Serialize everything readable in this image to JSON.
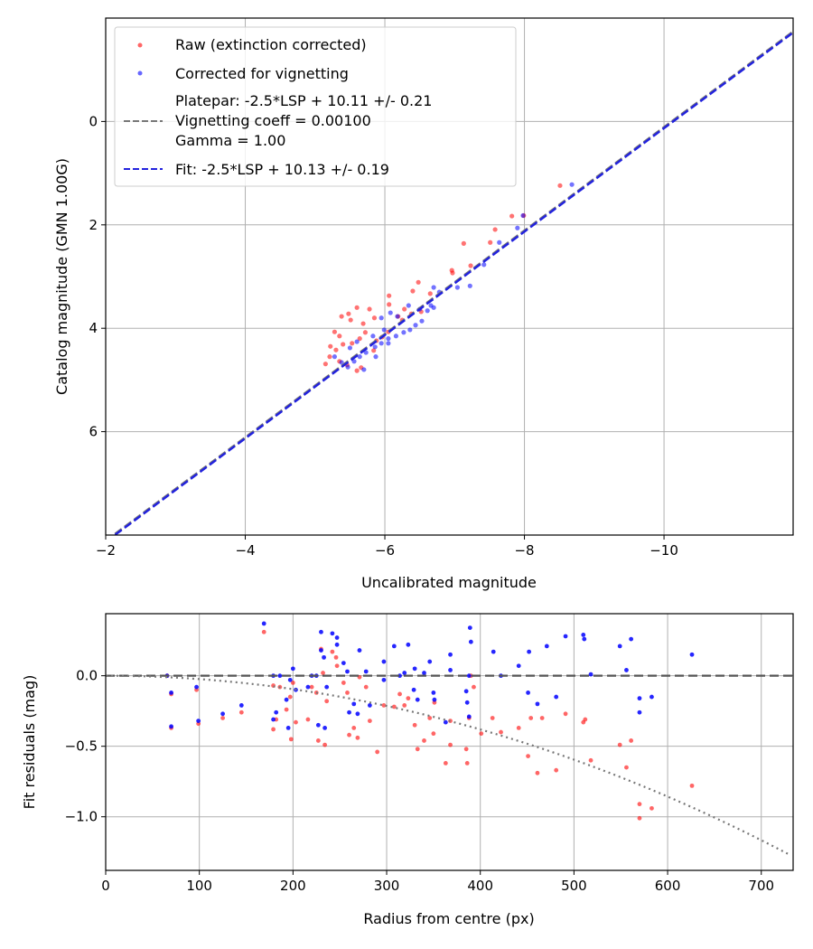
{
  "colors": {
    "raw": "#ff0000",
    "corrected": "#0000ff",
    "fit": "#2222dd",
    "platepar": "#777777",
    "grid": "#b0b0b0"
  },
  "chart_data": [
    {
      "type": "scatter",
      "title": "",
      "xlabel": "Uncalibrated magnitude",
      "ylabel": "Catalog magnitude (GMN 1.00G)",
      "xlim": [
        -2,
        -11.85
      ],
      "ylim": [
        8,
        -2
      ],
      "grid": true,
      "legend_placement": "top-left",
      "xticks": [
        -2,
        -4,
        -6,
        -8,
        -10
      ],
      "xtick_labels": [
        "−2",
        "−4",
        "−6",
        "−8",
        "−10"
      ],
      "yticks": [
        0,
        2,
        4,
        6
      ],
      "ytick_labels": [
        "0",
        "2",
        "4",
        "6"
      ],
      "legend": [
        "Raw (extinction corrected)",
        "Corrected for vignetting",
        "Platepar: -2.5*LSP + 10.11 +/- 0.21",
        "Vignetting coeff = 0.00100",
        "Gamma = 1.00",
        "Fit: -2.5*LSP + 10.13 +/- 0.19"
      ],
      "lines": [
        {
          "name": "platepar",
          "slope": 1,
          "intercept": 10.11
        },
        {
          "name": "fit",
          "slope": 1,
          "intercept": 10.13
        }
      ],
      "series": [
        {
          "name": "Raw (extinction corrected)",
          "points": [
            [
              -8.51,
              1.24
            ],
            [
              -7.99,
              1.82
            ],
            [
              -7.82,
              1.83
            ],
            [
              -7.58,
              2.09
            ],
            [
              -7.51,
              2.34
            ],
            [
              -7.13,
              2.36
            ],
            [
              -6.96,
              2.88
            ],
            [
              -7.23,
              2.79
            ],
            [
              -6.97,
              2.93
            ],
            [
              -6.48,
              3.11
            ],
            [
              -6.65,
              3.33
            ],
            [
              -6.4,
              3.28
            ],
            [
              -6.06,
              3.37
            ],
            [
              -5.78,
              3.63
            ],
            [
              -5.6,
              3.6
            ],
            [
              -5.48,
              3.72
            ],
            [
              -5.38,
              3.77
            ],
            [
              -5.51,
              3.84
            ],
            [
              -6.06,
              3.54
            ],
            [
              -6.19,
              3.77
            ],
            [
              -6.38,
              3.72
            ],
            [
              -6.52,
              3.68
            ],
            [
              -5.69,
              3.91
            ],
            [
              -5.72,
              4.08
            ],
            [
              -5.64,
              4.2
            ],
            [
              -5.53,
              4.29
            ],
            [
              -5.4,
              4.31
            ],
            [
              -5.3,
              4.42
            ],
            [
              -5.21,
              4.55
            ],
            [
              -5.15,
              4.69
            ],
            [
              -5.35,
              4.64
            ],
            [
              -5.46,
              4.71
            ],
            [
              -5.6,
              4.82
            ],
            [
              -5.66,
              4.76
            ],
            [
              -5.88,
              4.24
            ],
            [
              -5.96,
              4.17
            ],
            [
              -6.05,
              4.07
            ],
            [
              -5.84,
              4.43
            ],
            [
              -6.25,
              3.84
            ],
            [
              -5.85,
              3.8
            ],
            [
              -6.28,
              3.63
            ],
            [
              -5.28,
              4.07
            ],
            [
              -5.35,
              4.15
            ],
            [
              -5.22,
              4.35
            ]
          ]
        },
        {
          "name": "Corrected for vignetting",
          "points": [
            [
              -8.68,
              1.22
            ],
            [
              -7.98,
              1.82
            ],
            [
              -7.9,
              2.06
            ],
            [
              -7.64,
              2.34
            ],
            [
              -7.42,
              2.77
            ],
            [
              -7.22,
              3.18
            ],
            [
              -7.04,
              3.21
            ],
            [
              -6.78,
              3.3
            ],
            [
              -6.66,
              3.56
            ],
            [
              -6.61,
              3.66
            ],
            [
              -6.53,
              3.86
            ],
            [
              -6.44,
              3.94
            ],
            [
              -6.36,
              4.03
            ],
            [
              -6.27,
              4.08
            ],
            [
              -6.16,
              4.15
            ],
            [
              -6.05,
              4.2
            ],
            [
              -5.95,
              4.29
            ],
            [
              -5.86,
              4.36
            ],
            [
              -5.73,
              4.47
            ],
            [
              -5.64,
              4.55
            ],
            [
              -5.56,
              4.64
            ],
            [
              -5.47,
              4.75
            ],
            [
              -5.7,
              4.8
            ],
            [
              -5.38,
              4.66
            ],
            [
              -5.28,
              4.55
            ],
            [
              -5.95,
              3.8
            ],
            [
              -6.08,
              3.7
            ],
            [
              -6.18,
              3.77
            ],
            [
              -6.34,
              3.56
            ],
            [
              -6.5,
              3.63
            ],
            [
              -6.7,
              3.6
            ],
            [
              -5.83,
              4.15
            ],
            [
              -5.99,
              4.03
            ],
            [
              -5.6,
              4.26
            ],
            [
              -5.5,
              4.38
            ],
            [
              -5.87,
              4.55
            ],
            [
              -6.05,
              4.29
            ],
            [
              -6.7,
              3.21
            ]
          ]
        }
      ]
    },
    {
      "type": "scatter",
      "title": "",
      "xlabel": "Radius from centre (px)",
      "ylabel": "Fit residuals (mag)",
      "xlim": [
        0,
        734
      ],
      "ylim": [
        -1.38,
        0.44
      ],
      "grid": true,
      "xticks": [
        0,
        100,
        200,
        300,
        400,
        500,
        600,
        700
      ],
      "xtick_labels": [
        "0",
        "100",
        "200",
        "300",
        "400",
        "500",
        "600",
        "700"
      ],
      "yticks": [
        0,
        -0.5,
        -1
      ],
      "ytick_labels": [
        "0.0",
        "−0.5",
        "−1.0"
      ],
      "lines": [
        {
          "name": "zero",
          "value": 0
        },
        {
          "name": "vignetting curve",
          "quadratic_coeff": -2.38e-06
        }
      ],
      "series": [
        {
          "name": "Raw",
          "points": [
            [
              65.6,
              0
            ],
            [
              70,
              -0.13
            ],
            [
              70,
              -0.37
            ],
            [
              97,
              -0.1
            ],
            [
              99,
              -0.34
            ],
            [
              125,
              -0.3
            ],
            [
              145,
              -0.26
            ],
            [
              169,
              0.31
            ],
            [
              179,
              -0.38
            ],
            [
              182,
              -0.31
            ],
            [
              179,
              -0.07
            ],
            [
              186,
              -0.08
            ],
            [
              193,
              -0.24
            ],
            [
              197,
              -0.15
            ],
            [
              198,
              -0.45
            ],
            [
              203,
              -0.33
            ],
            [
              200,
              -0.05
            ],
            [
              216,
              -0.31
            ],
            [
              220,
              -0.08
            ],
            [
              225,
              -0.12
            ],
            [
              227,
              -0.46
            ],
            [
              230,
              0.19
            ],
            [
              232,
              0.02
            ],
            [
              234,
              -0.49
            ],
            [
              236,
              -0.18
            ],
            [
              242,
              0.17
            ],
            [
              246,
              0.13
            ],
            [
              247,
              0.07
            ],
            [
              254,
              -0.05
            ],
            [
              258,
              -0.12
            ],
            [
              260,
              -0.42
            ],
            [
              265,
              -0.37
            ],
            [
              269,
              -0.44
            ],
            [
              271,
              -0.01
            ],
            [
              278,
              -0.08
            ],
            [
              282,
              -0.32
            ],
            [
              290,
              -0.54
            ],
            [
              297,
              -0.21
            ],
            [
              308,
              -0.22
            ],
            [
              314,
              -0.13
            ],
            [
              319,
              -0.21
            ],
            [
              323,
              -0.16
            ],
            [
              330,
              -0.35
            ],
            [
              333,
              -0.52
            ],
            [
              340,
              -0.46
            ],
            [
              346,
              -0.3
            ],
            [
              350,
              -0.41
            ],
            [
              351,
              -0.19
            ],
            [
              363,
              -0.62
            ],
            [
              368,
              -0.49
            ],
            [
              368,
              -0.32
            ],
            [
              385,
              -0.52
            ],
            [
              386,
              -0.62
            ],
            [
              388,
              -0.3
            ],
            [
              390,
              0
            ],
            [
              393,
              -0.08
            ],
            [
              401,
              -0.41
            ],
            [
              413,
              -0.3
            ],
            [
              422,
              -0.4
            ],
            [
              441,
              -0.37
            ],
            [
              451,
              -0.57
            ],
            [
              454,
              -0.3
            ],
            [
              461,
              -0.69
            ],
            [
              466,
              -0.3
            ],
            [
              481,
              -0.67
            ],
            [
              491,
              -0.27
            ],
            [
              510,
              -0.33
            ],
            [
              512,
              -0.31
            ],
            [
              518,
              -0.6
            ],
            [
              549,
              -0.49
            ],
            [
              556,
              -0.65
            ],
            [
              561,
              -0.46
            ],
            [
              570,
              -0.91
            ],
            [
              570,
              -1.01
            ],
            [
              583,
              -0.94
            ],
            [
              626,
              -0.78
            ]
          ]
        },
        {
          "name": "Corrected",
          "points": [
            [
              65.6,
              0
            ],
            [
              70,
              -0.12
            ],
            [
              70,
              -0.36
            ],
            [
              97,
              -0.08
            ],
            [
              99,
              -0.32
            ],
            [
              125,
              -0.27
            ],
            [
              145,
              -0.21
            ],
            [
              169,
              0.37
            ],
            [
              179,
              0
            ],
            [
              186,
              0
            ],
            [
              179,
              -0.31
            ],
            [
              182,
              -0.26
            ],
            [
              200,
              0.05
            ],
            [
              197,
              -0.03
            ],
            [
              203,
              -0.1
            ],
            [
              193,
              -0.17
            ],
            [
              195,
              -0.37
            ],
            [
              220,
              0
            ],
            [
              225,
              0
            ],
            [
              230,
              0.31
            ],
            [
              230,
              0.18
            ],
            [
              233,
              0.13
            ],
            [
              236,
              -0.08
            ],
            [
              216,
              -0.08
            ],
            [
              227,
              -0.35
            ],
            [
              234,
              -0.37
            ],
            [
              242,
              0.3
            ],
            [
              247,
              0.27
            ],
            [
              247,
              0.22
            ],
            [
              254,
              0.09
            ],
            [
              258,
              0.03
            ],
            [
              260,
              -0.26
            ],
            [
              265,
              -0.2
            ],
            [
              269,
              -0.27
            ],
            [
              271,
              0.18
            ],
            [
              278,
              0.03
            ],
            [
              282,
              -0.21
            ],
            [
              297,
              0.1
            ],
            [
              297,
              -0.03
            ],
            [
              308,
              0.21
            ],
            [
              314,
              0
            ],
            [
              319,
              0.02
            ],
            [
              323,
              0.22
            ],
            [
              330,
              0.05
            ],
            [
              329,
              -0.1
            ],
            [
              333,
              -0.17
            ],
            [
              340,
              0.02
            ],
            [
              346,
              0.1
            ],
            [
              350,
              -0.12
            ],
            [
              351,
              -0.17
            ],
            [
              363,
              -0.33
            ],
            [
              368,
              0.04
            ],
            [
              368,
              0.15
            ],
            [
              385,
              -0.11
            ],
            [
              386,
              -0.19
            ],
            [
              388,
              -0.29
            ],
            [
              389,
              0.34
            ],
            [
              390,
              0.24
            ],
            [
              388,
              0
            ],
            [
              422,
              0
            ],
            [
              414,
              0.17
            ],
            [
              441,
              0.07
            ],
            [
              451,
              -0.12
            ],
            [
              461,
              -0.2
            ],
            [
              471,
              0.21
            ],
            [
              491,
              0.28
            ],
            [
              511,
              0.26
            ],
            [
              510,
              0.29
            ],
            [
              518,
              0.01
            ],
            [
              481,
              -0.15
            ],
            [
              549,
              0.21
            ],
            [
              556,
              0.04
            ],
            [
              561,
              0.26
            ],
            [
              570,
              -0.16
            ],
            [
              570,
              -0.26
            ],
            [
              583,
              -0.15
            ],
            [
              626,
              0.15
            ],
            [
              452,
              0.17
            ]
          ]
        }
      ]
    }
  ]
}
